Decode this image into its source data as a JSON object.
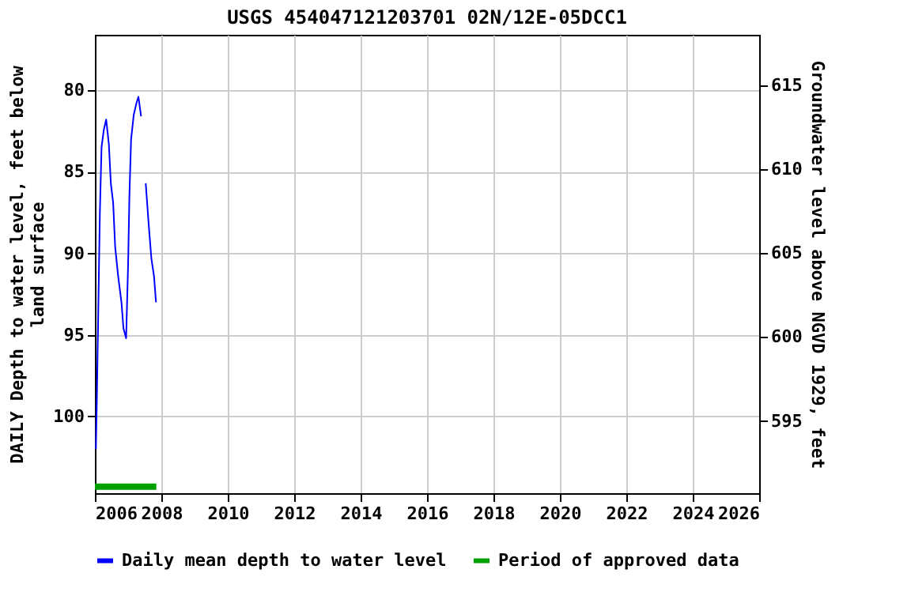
{
  "chart_data": {
    "type": "line",
    "title": "USGS 454047121203701 02N/12E-05DCC1",
    "xlabel": null,
    "ylabel": "DAILY Depth to water level, feet below\nland surface",
    "y2label": "Groundwater level above NGVD 1929, feet",
    "xlim": [
      2006,
      2026
    ],
    "xticks": [
      2006,
      2008,
      2010,
      2012,
      2014,
      2016,
      2018,
      2020,
      2022,
      2024,
      2026
    ],
    "ylim": [
      104.7,
      76.6
    ],
    "yticks": [
      80,
      85,
      90,
      95,
      100
    ],
    "y2lim": [
      590.7,
      618.0
    ],
    "y2ticks": [
      595,
      600,
      605,
      610,
      615
    ],
    "grid": true,
    "legend": "bottom",
    "series": [
      {
        "name": "Daily mean depth to water level",
        "color": "#0000ff",
        "x": [
          2006.03,
          2006.06,
          2006.11,
          2006.15,
          2006.2,
          2006.27,
          2006.34,
          2006.42,
          2006.48,
          2006.55,
          2006.61,
          2006.7,
          2006.8,
          2006.86,
          2006.94,
          2007.0,
          2007.04,
          2007.09,
          2007.17,
          2007.25,
          2007.31,
          2007.39,
          2007.46,
          2007.53,
          2007.63,
          2007.7,
          2007.78,
          2007.84
        ],
        "values": [
          102.0,
          98.8,
          92.5,
          87.5,
          83.5,
          82.4,
          81.8,
          83.3,
          85.7,
          86.9,
          89.6,
          91.4,
          93.0,
          94.6,
          95.2,
          90.7,
          86.4,
          83.0,
          81.5,
          80.8,
          80.4,
          81.6,
          null,
          85.7,
          88.5,
          90.3,
          91.4,
          93.0
        ]
      },
      {
        "name": "Period of approved data",
        "color": "#00a000",
        "x": [
          2006.0,
          2007.85
        ],
        "values": [
          104.3,
          104.3
        ]
      }
    ]
  }
}
